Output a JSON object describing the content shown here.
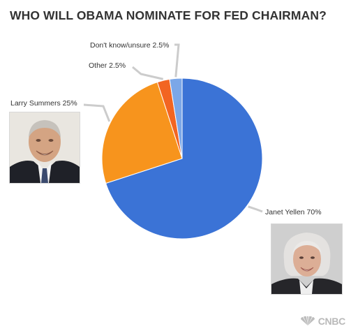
{
  "chart_data": {
    "type": "pie",
    "title": "WHO WILL OBAMA NOMINATE FOR FED CHAIRMAN?",
    "slices": [
      {
        "label": "Janet Yellen 70%",
        "value": 70,
        "color": "#3b73d6"
      },
      {
        "label": "Larry Summers 25%",
        "value": 25,
        "color": "#f7941d"
      },
      {
        "label": "Other 2.5%",
        "value": 2.5,
        "color": "#f26522"
      },
      {
        "label": "Don't know/unsure 2.5%",
        "value": 2.5,
        "color": "#7ba7e8"
      }
    ],
    "start_angle_deg": 0,
    "direction": "clockwise"
  },
  "branding": {
    "logo_text": "CNBC",
    "logo_icon": "peacock-icon"
  },
  "photos": [
    {
      "subject": "Larry Summers",
      "icon": "portrait-man"
    },
    {
      "subject": "Janet Yellen",
      "icon": "portrait-woman"
    }
  ]
}
